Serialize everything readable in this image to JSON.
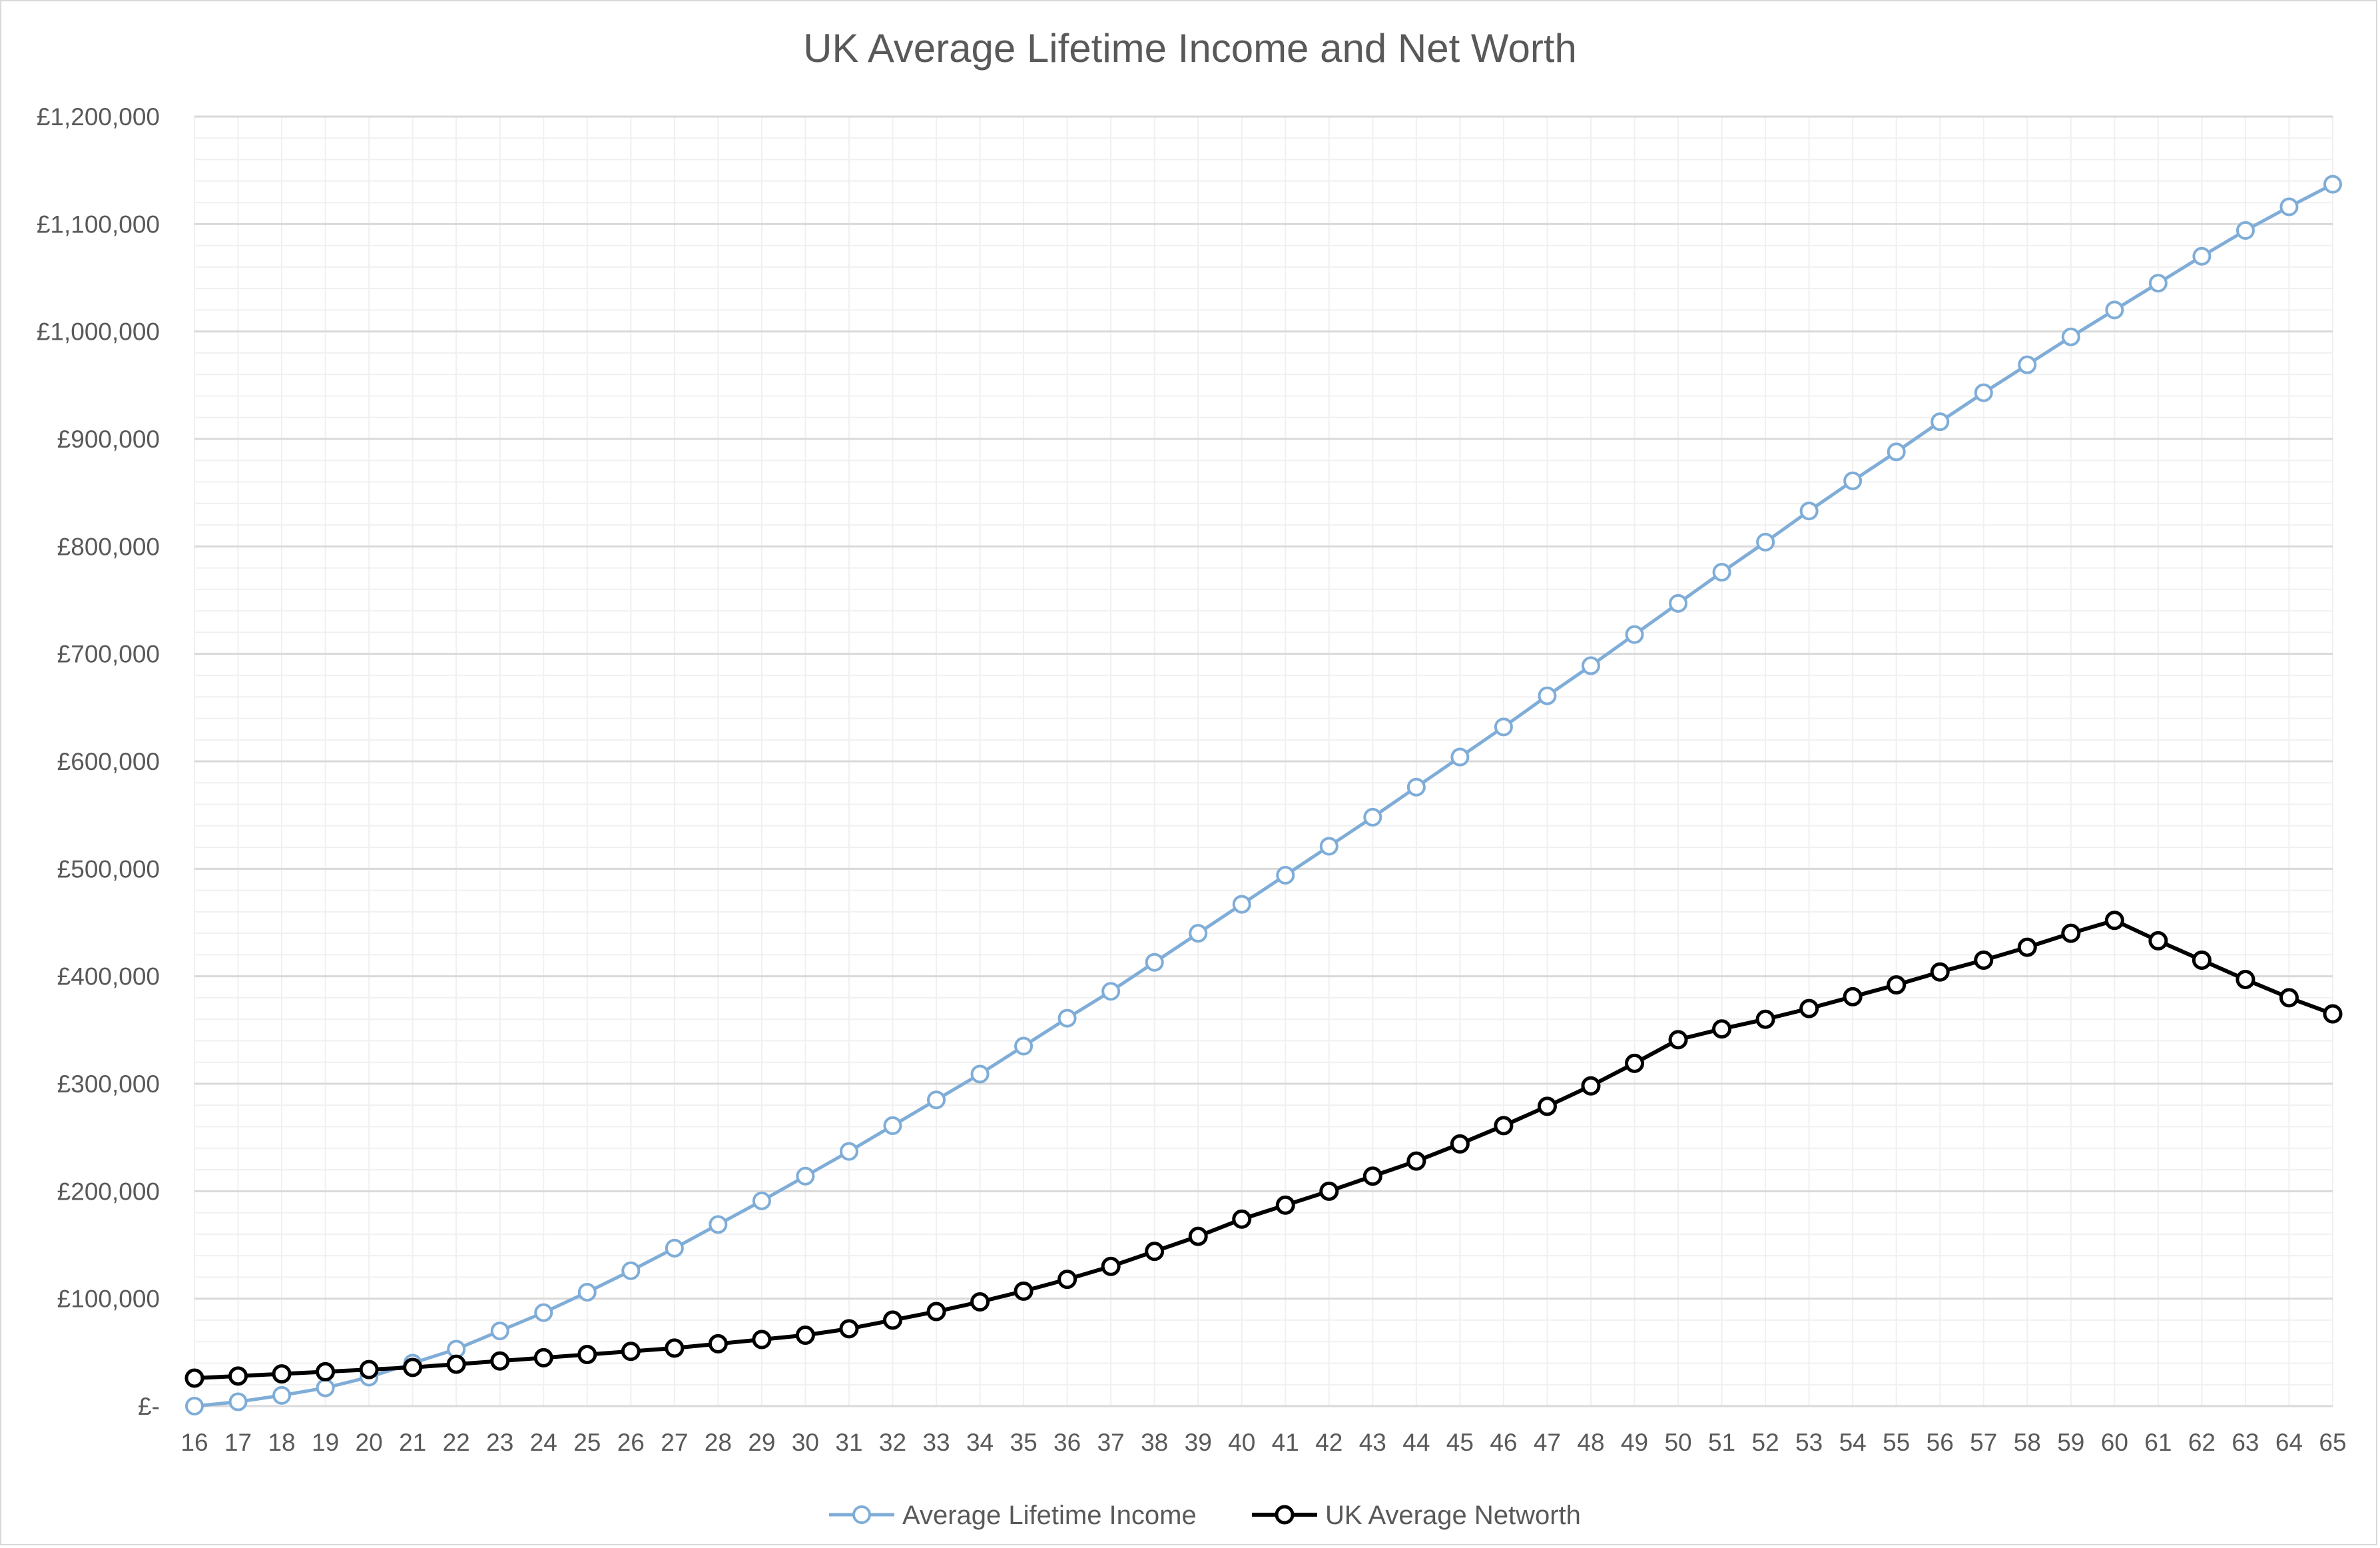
{
  "chart_data": {
    "type": "line",
    "title": "UK Average Lifetime Income and Net Worth",
    "xlabel": "",
    "ylabel": "",
    "x": [
      16,
      17,
      18,
      19,
      20,
      21,
      22,
      23,
      24,
      25,
      26,
      27,
      28,
      29,
      30,
      31,
      32,
      33,
      34,
      35,
      36,
      37,
      38,
      39,
      40,
      41,
      42,
      43,
      44,
      45,
      46,
      47,
      48,
      49,
      50,
      51,
      52,
      53,
      54,
      55,
      56,
      57,
      58,
      59,
      60,
      61,
      62,
      63,
      64,
      65
    ],
    "ylim": [
      0,
      1200000
    ],
    "yticks": [
      0,
      100000,
      200000,
      300000,
      400000,
      500000,
      600000,
      700000,
      800000,
      900000,
      1000000,
      1100000,
      1200000
    ],
    "ytick_labels": [
      "£-",
      "£100,000",
      "£200,000",
      "£300,000",
      "£400,000",
      "£500,000",
      "£600,000",
      "£700,000",
      "£800,000",
      "£900,000",
      "£1,000,000",
      "£1,100,000",
      "£1,200,000"
    ],
    "grid": true,
    "legend_position": "bottom",
    "series": [
      {
        "name": "Average Lifetime Income",
        "color": "#7fadd8",
        "marker": "circle-open",
        "values": [
          0,
          4000,
          10000,
          17000,
          27000,
          40000,
          53000,
          70000,
          87000,
          106000,
          126000,
          147000,
          169000,
          191000,
          214000,
          237000,
          261000,
          285000,
          309000,
          335000,
          361000,
          386000,
          413000,
          440000,
          467000,
          494000,
          521000,
          548000,
          576000,
          604000,
          632000,
          661000,
          689000,
          718000,
          747000,
          776000,
          804000,
          833000,
          861000,
          888000,
          916000,
          943000,
          969000,
          995000,
          1020000,
          1045000,
          1070000,
          1094000,
          1116000,
          1137000
        ]
      },
      {
        "name": "UK Average Networth",
        "color": "#000000",
        "marker": "circle-open",
        "values": [
          26000,
          28000,
          30000,
          32000,
          34000,
          36000,
          39000,
          42000,
          45000,
          48000,
          51000,
          54000,
          58000,
          62000,
          66000,
          72000,
          80000,
          88000,
          97000,
          107000,
          118000,
          130000,
          144000,
          158000,
          174000,
          187000,
          200000,
          214000,
          228000,
          244000,
          261000,
          279000,
          298000,
          319000,
          341000,
          351000,
          360000,
          370000,
          381000,
          392000,
          404000,
          415000,
          427000,
          440000,
          452000,
          433000,
          415000,
          397000,
          380000,
          365000
        ]
      }
    ]
  }
}
